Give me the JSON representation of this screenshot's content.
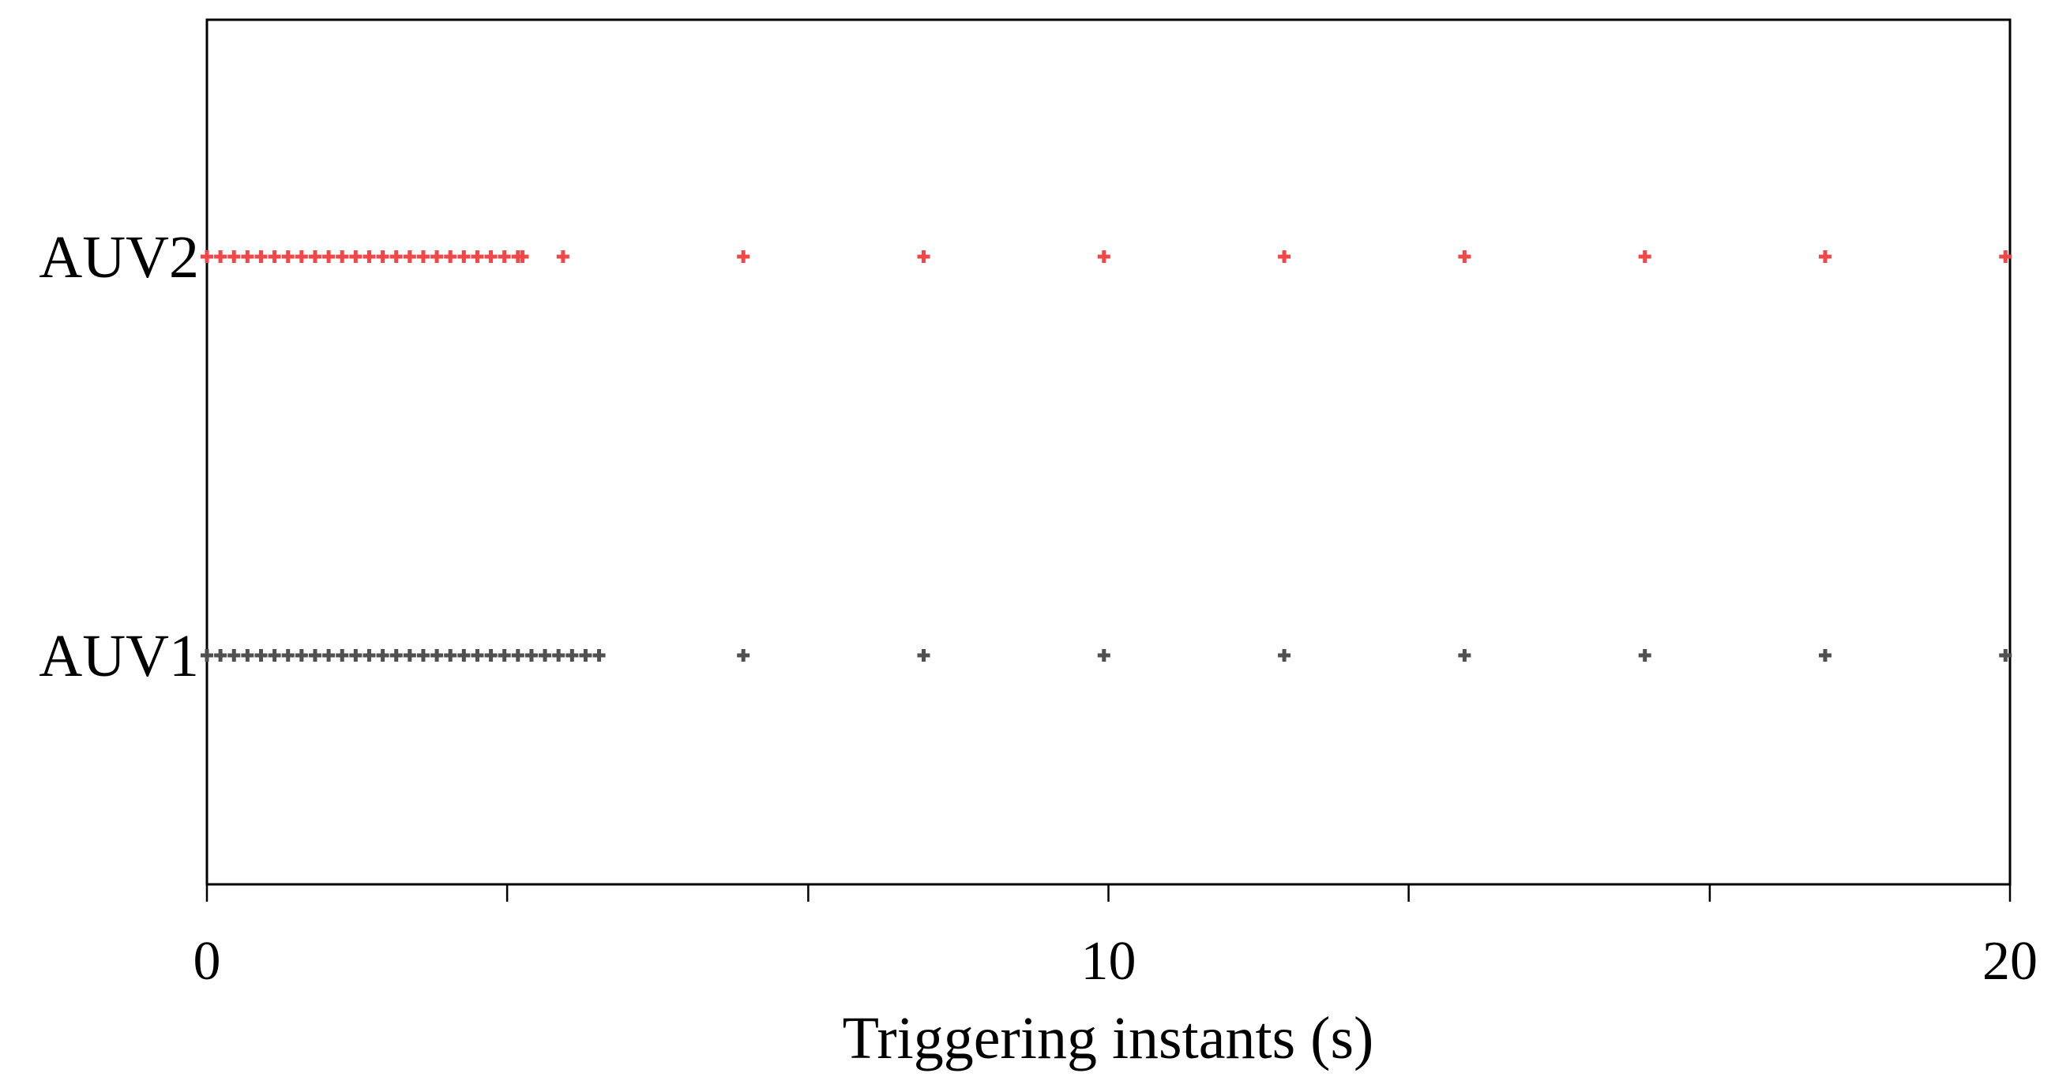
{
  "chart_data": {
    "type": "scatter",
    "xlabel": "Triggering instants (s)",
    "xlim": [
      0,
      20
    ],
    "x_tick_labels": [
      {
        "value": 0,
        "label": "0"
      },
      {
        "value": 10,
        "label": "10"
      },
      {
        "value": 20,
        "label": "20"
      }
    ],
    "x_minor_ticks": [
      0,
      3.33,
      6.67,
      10,
      13.33,
      16.67,
      20
    ],
    "categories": [
      "AUV1",
      "AUV2"
    ],
    "grid": false,
    "marker": "plus",
    "series": [
      {
        "name": "AUV2",
        "category": "AUV2",
        "color": "#f04848",
        "x": [
          0.0,
          0.15,
          0.3,
          0.45,
          0.6,
          0.75,
          0.9,
          1.05,
          1.2,
          1.35,
          1.5,
          1.65,
          1.8,
          1.95,
          2.1,
          2.25,
          2.4,
          2.55,
          2.7,
          2.85,
          3.0,
          3.15,
          3.3,
          3.45,
          3.5,
          3.95,
          5.95,
          7.95,
          9.95,
          11.95,
          13.95,
          15.95,
          17.95,
          19.95
        ]
      },
      {
        "name": "AUV1",
        "category": "AUV1",
        "color": "#505050",
        "x": [
          0.0,
          0.15,
          0.3,
          0.45,
          0.6,
          0.75,
          0.9,
          1.05,
          1.2,
          1.35,
          1.5,
          1.65,
          1.8,
          1.95,
          2.1,
          2.25,
          2.4,
          2.55,
          2.7,
          2.85,
          3.0,
          3.15,
          3.3,
          3.45,
          3.6,
          3.75,
          3.9,
          4.05,
          4.2,
          4.35,
          5.95,
          7.95,
          9.95,
          11.95,
          13.95,
          15.95,
          17.95,
          19.95
        ]
      }
    ]
  }
}
